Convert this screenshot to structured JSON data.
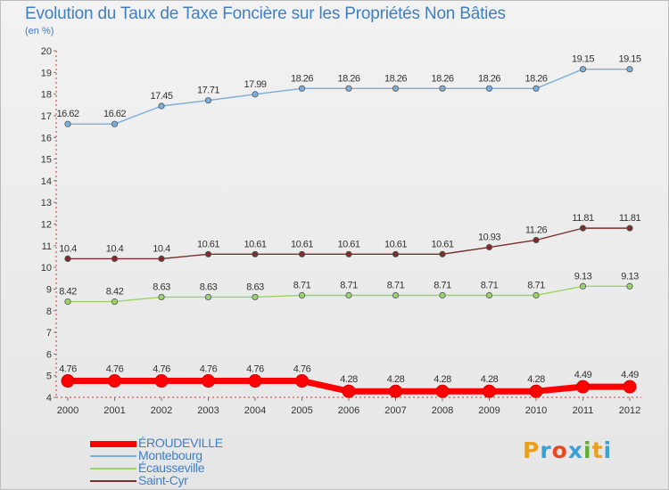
{
  "header": {
    "title": "Evolution du Taux de Taxe Foncière sur les Propriétés Non Bâties",
    "unit": "(en %)"
  },
  "logo": {
    "text": "Proxiti",
    "colors": [
      "#e8a020",
      "#3aa0d8",
      "#e84820",
      "#3aa0d8",
      "#60b030",
      "#e8a020",
      "#3aa0d8"
    ]
  },
  "chart_data": {
    "type": "line",
    "title": "Evolution du Taux de Taxe Foncière sur les Propriétés Non Bâties",
    "ylabel": "(en %)",
    "xlabel": "",
    "categories": [
      "2000",
      "2001",
      "2002",
      "2003",
      "2004",
      "2005",
      "2006",
      "2007",
      "2008",
      "2009",
      "2010",
      "2011",
      "2012"
    ],
    "ylim": [
      4,
      20
    ],
    "yticks": [
      4,
      5,
      6,
      7,
      8,
      9,
      10,
      11,
      12,
      13,
      14,
      15,
      16,
      17,
      18,
      19,
      20
    ],
    "grid": false,
    "legend_position": "bottom-left",
    "series": [
      {
        "name": "ÉROUDEVILLE",
        "color": "#ff0000",
        "highlight": true,
        "values": [
          4.76,
          4.76,
          4.76,
          4.76,
          4.76,
          4.76,
          4.28,
          4.28,
          4.28,
          4.28,
          4.28,
          4.49,
          4.49
        ],
        "labels": [
          "4.76",
          "4.76",
          "4.76",
          "4.76",
          "4.76",
          "4.76",
          "4.28",
          "4.28",
          "4.28",
          "4.28",
          "4.28",
          "4.49",
          "4.49"
        ]
      },
      {
        "name": "Montebourg",
        "color": "#7aaedb",
        "highlight": false,
        "values": [
          16.62,
          16.62,
          17.45,
          17.71,
          17.99,
          18.26,
          18.26,
          18.26,
          18.26,
          18.26,
          18.26,
          19.15,
          19.15
        ],
        "labels": [
          "16.62",
          "16.62",
          "17.45",
          "17.71",
          "17.99",
          "18.26",
          "18.26",
          "18.26",
          "18.26",
          "18.26",
          "18.26",
          "19.15",
          "19.15"
        ]
      },
      {
        "name": "Écausseville",
        "color": "#9ad466",
        "highlight": false,
        "values": [
          8.42,
          8.42,
          8.63,
          8.63,
          8.63,
          8.71,
          8.71,
          8.71,
          8.71,
          8.71,
          8.71,
          9.13,
          9.13
        ],
        "labels": [
          "8.42",
          "8.42",
          "8.63",
          "8.63",
          "8.63",
          "8.71",
          "8.71",
          "8.71",
          "8.71",
          "8.71",
          "8.71",
          "9.13",
          "9.13"
        ]
      },
      {
        "name": "Saint-Cyr",
        "color": "#7a2e2e",
        "highlight": false,
        "values": [
          10.4,
          10.4,
          10.4,
          10.61,
          10.61,
          10.61,
          10.61,
          10.61,
          10.61,
          10.93,
          11.26,
          11.81,
          11.81
        ],
        "labels": [
          "10.4",
          "10.4",
          "10.4",
          "10.61",
          "10.61",
          "10.61",
          "10.61",
          "10.61",
          "10.61",
          "10.93",
          "11.26",
          "11.81",
          "11.81"
        ]
      }
    ]
  }
}
